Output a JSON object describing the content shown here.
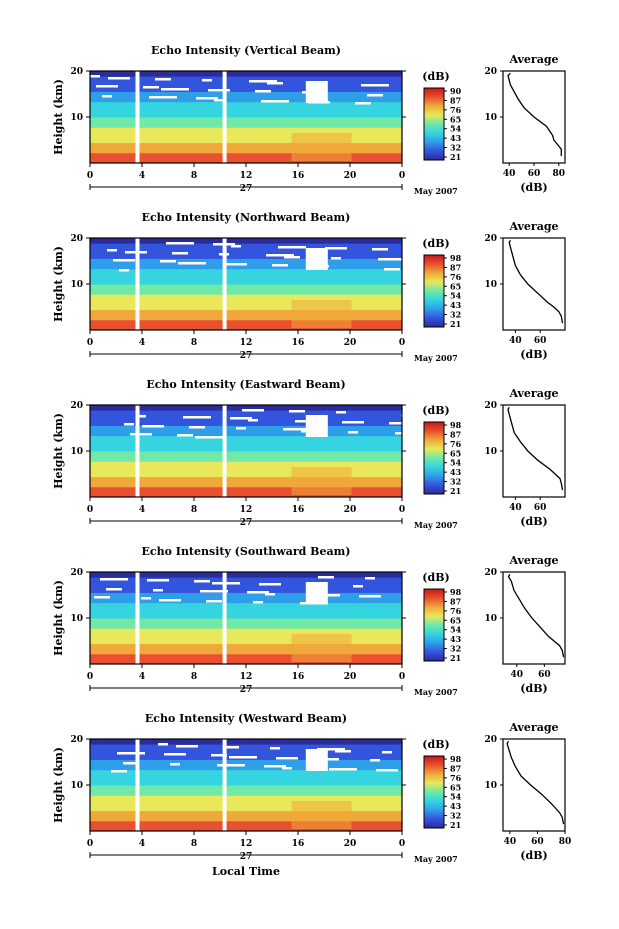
{
  "chart_data": [
    {
      "type": "heatmap",
      "title": "Echo Intensity (Vertical Beam)",
      "ylabel": "Height (km)",
      "y_ticks": [
        "20",
        "10"
      ],
      "x_ticks": [
        "0",
        "4",
        "8",
        "12",
        "16",
        "20",
        "0"
      ],
      "date_label": "27",
      "month_label": "May 2007",
      "colorbar_unit": "(dB)",
      "colorbar_ticks": [
        "90",
        "87",
        "76",
        "65",
        "54",
        "43",
        "32",
        "21"
      ],
      "profile": {
        "title": "Average",
        "xlabel": "(dB)",
        "x_ticks": [
          "40",
          "60",
          "80"
        ],
        "y_ticks": [
          "20",
          "10"
        ],
        "x_range": [
          35,
          85
        ],
        "heights": [
          1.5,
          3,
          4,
          5,
          6,
          8,
          10,
          12,
          14,
          16,
          17,
          18,
          19,
          19.5
        ],
        "values": [
          82,
          82,
          79,
          76,
          75,
          70,
          60,
          52,
          47,
          43,
          41,
          40,
          39,
          41
        ]
      }
    },
    {
      "type": "heatmap",
      "title": "Echo Intensity (Northward Beam)",
      "ylabel": "Height (km)",
      "y_ticks": [
        "20",
        "10"
      ],
      "x_ticks": [
        "0",
        "4",
        "8",
        "12",
        "16",
        "20",
        "0"
      ],
      "date_label": "27",
      "month_label": "May 2007",
      "colorbar_unit": "(dB)",
      "colorbar_ticks": [
        "98",
        "87",
        "76",
        "65",
        "54",
        "43",
        "32",
        "21"
      ],
      "profile": {
        "title": "Average",
        "xlabel": "(dB)",
        "x_ticks": [
          "40",
          "60"
        ],
        "y_ticks": [
          "20",
          "10"
        ],
        "x_range": [
          30,
          80
        ],
        "heights": [
          1.5,
          3,
          4,
          5,
          6,
          8,
          10,
          12,
          14,
          16,
          18,
          19,
          19.5
        ],
        "values": [
          78,
          77,
          75,
          71,
          66,
          58,
          50,
          44,
          40,
          38,
          36,
          35,
          36
        ]
      }
    },
    {
      "type": "heatmap",
      "title": "Echo Intensity (Eastward Beam)",
      "ylabel": "Height (km)",
      "y_ticks": [
        "20",
        "10"
      ],
      "x_ticks": [
        "0",
        "4",
        "8",
        "12",
        "16",
        "20",
        "0"
      ],
      "date_label": "27",
      "month_label": "May 2007",
      "colorbar_unit": "(dB)",
      "colorbar_ticks": [
        "98",
        "87",
        "76",
        "65",
        "54",
        "43",
        "32",
        "21"
      ],
      "profile": {
        "title": "Average",
        "xlabel": "(dB)",
        "x_ticks": [
          "40",
          "60"
        ],
        "y_ticks": [
          "20",
          "10"
        ],
        "x_range": [
          30,
          80
        ],
        "heights": [
          1.5,
          3,
          4,
          5,
          6,
          8,
          10,
          12,
          14,
          16,
          18,
          19,
          19.5
        ],
        "values": [
          78,
          77,
          76,
          72,
          68,
          58,
          50,
          44,
          39,
          37,
          35,
          34,
          35
        ]
      }
    },
    {
      "type": "heatmap",
      "title": "Echo Intensity (Southward Beam)",
      "ylabel": "Height (km)",
      "y_ticks": [
        "20",
        "10"
      ],
      "x_ticks": [
        "0",
        "4",
        "8",
        "12",
        "16",
        "20",
        "0"
      ],
      "date_label": "27",
      "month_label": "May 2007",
      "colorbar_unit": "(dB)",
      "colorbar_ticks": [
        "98",
        "87",
        "76",
        "65",
        "54",
        "43",
        "32",
        "21"
      ],
      "profile": {
        "title": "Average",
        "xlabel": "(dB)",
        "x_ticks": [
          "40",
          "60"
        ],
        "y_ticks": [
          "20",
          "10"
        ],
        "x_range": [
          30,
          75
        ],
        "heights": [
          1.5,
          3,
          4,
          5,
          6,
          8,
          10,
          12,
          14,
          16,
          18,
          19,
          19.5
        ],
        "values": [
          74,
          73,
          71,
          67,
          63,
          57,
          51,
          46,
          42,
          38,
          36,
          34,
          35
        ]
      }
    },
    {
      "type": "heatmap",
      "title": "Echo Intensity (Westward Beam)",
      "ylabel": "Height (km)",
      "y_ticks": [
        "20",
        "10"
      ],
      "x_ticks": [
        "0",
        "4",
        "8",
        "12",
        "16",
        "20",
        "0"
      ],
      "date_label": "27",
      "month_label": "May 2007",
      "xlabel": "Local Time",
      "colorbar_unit": "(dB)",
      "colorbar_ticks": [
        "98",
        "87",
        "76",
        "65",
        "54",
        "43",
        "32",
        "21"
      ],
      "profile": {
        "title": "Average",
        "xlabel": "(dB)",
        "x_ticks": [
          "40",
          "60",
          "80"
        ],
        "y_ticks": [
          "20",
          "10"
        ],
        "x_range": [
          35,
          80
        ],
        "heights": [
          1.5,
          3,
          4,
          5,
          6,
          8,
          10,
          12,
          14,
          16,
          18,
          19,
          19.5
        ],
        "values": [
          79,
          78,
          76,
          73,
          70,
          63,
          55,
          48,
          44,
          41,
          39,
          38,
          39
        ]
      }
    }
  ],
  "colors": {
    "scale": [
      "#2b2b9a",
      "#3355dd",
      "#2f9ee8",
      "#35d4e0",
      "#6fe8a8",
      "#e8e85a",
      "#f0a83a",
      "#e85030",
      "#c81818"
    ]
  }
}
